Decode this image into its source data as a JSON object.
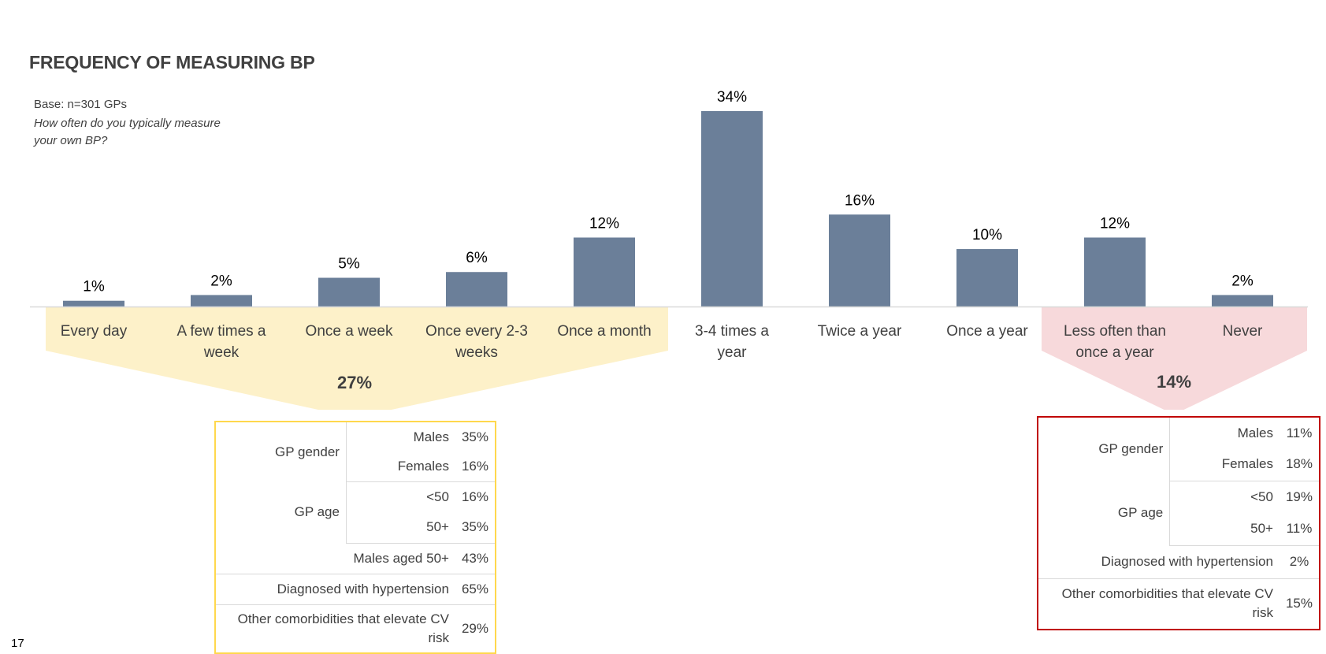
{
  "title": "FREQUENCY OF MEASURING BP",
  "base": "Base: n=301 GPs",
  "question": "How often do you typically measure your own BP?",
  "page_number": "17",
  "colors": {
    "bar": "#6b7f99",
    "group_often": "#fdf1c9",
    "group_rare": "#f7d9db",
    "table_often_border": "#ffd84d",
    "table_rare_border": "#c00000"
  },
  "chart_data": {
    "type": "bar",
    "title": "FREQUENCY OF MEASURING BP",
    "categories": [
      "Every day",
      "A few times a week",
      "Once a week",
      "Once every 2-3 weeks",
      "Once a month",
      "3-4 times a year",
      "Twice a year",
      "Once a year",
      "Less often than once a year",
      "Never"
    ],
    "series": [
      {
        "values": [
          1,
          2,
          5,
          6,
          12,
          34,
          16,
          10,
          12,
          2
        ]
      }
    ],
    "data_labels": [
      "1%",
      "2%",
      "5%",
      "6%",
      "12%",
      "34%",
      "16%",
      "10%",
      "12%",
      "2%"
    ],
    "ylim": [
      0,
      34
    ],
    "grid": false,
    "groups": [
      {
        "categories": [
          "Every day",
          "A few times a week",
          "Once a week",
          "Once every 2-3 weeks",
          "Once a month"
        ],
        "total": "27%"
      },
      {
        "categories": [
          "Less often than once a year",
          "Never"
        ],
        "total": "14%"
      }
    ]
  },
  "tables": {
    "often": {
      "rows": [
        {
          "label": "GP gender",
          "sub": "Males",
          "value": "35%"
        },
        {
          "label": "",
          "sub": "Females",
          "value": "16%"
        },
        {
          "label": "GP age",
          "sub": "<50",
          "value": "16%"
        },
        {
          "label": "",
          "sub": "50+",
          "value": "35%"
        },
        {
          "label": "Males aged 50+",
          "sub": "",
          "value": "43%"
        },
        {
          "label": "Diagnosed with hypertension",
          "sub": "",
          "value": "65%"
        },
        {
          "label": "Other comorbidities that elevate CV risk",
          "sub": "",
          "value": "29%"
        }
      ]
    },
    "rare": {
      "rows": [
        {
          "label": "GP gender",
          "sub": "Males",
          "value": "11%"
        },
        {
          "label": "",
          "sub": "Females",
          "value": "18%"
        },
        {
          "label": "GP age",
          "sub": "<50",
          "value": "19%"
        },
        {
          "label": "",
          "sub": "50+",
          "value": "11%"
        },
        {
          "label": "Diagnosed with hypertension",
          "sub": "",
          "value": "2%"
        },
        {
          "label": "Other comorbidities that elevate CV risk",
          "sub": "",
          "value": "15%"
        }
      ]
    }
  }
}
